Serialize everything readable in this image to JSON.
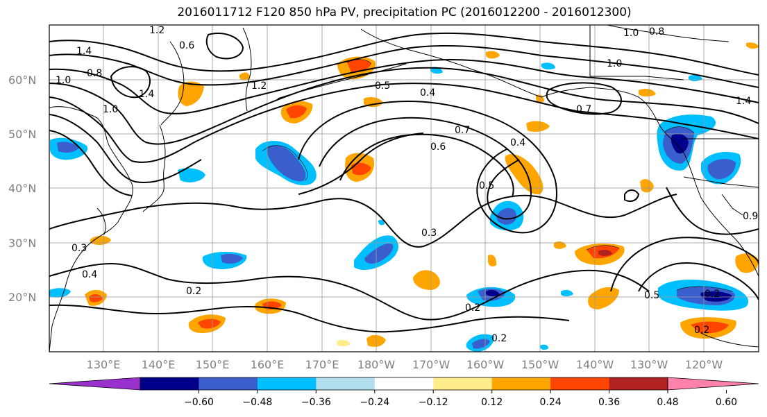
{
  "title": "2016011712 F120 850 hPa PV, precipitation PC (2016012200 - 2016012300)",
  "map": {
    "lat_labels": [
      "60°N",
      "50°N",
      "40°N",
      "30°N",
      "20°N"
    ],
    "lon_labels": [
      "130°E",
      "140°E",
      "150°E",
      "160°E",
      "170°E",
      "180°W",
      "170°W",
      "160°W",
      "150°W",
      "140°W",
      "130°W",
      "120°W"
    ],
    "contour_labels": [
      "1.4",
      "1.0",
      "0.8",
      "1.2",
      "1.4",
      "1.0",
      "0.6",
      "1.2",
      "0.5",
      "0.4",
      "1.0",
      "0.8",
      "1.0",
      "0.7",
      "0.7",
      "0.6",
      "0.4",
      "0.5",
      "0.3",
      "0.3",
      "0.4",
      "0.2",
      "0.2",
      "0.2",
      "0.2",
      "0.5",
      "0.2",
      "0.9",
      "1.4"
    ]
  },
  "colorbar": {
    "ticks": [
      "−0.60",
      "−0.48",
      "−0.36",
      "−0.24",
      "−0.12",
      "0.12",
      "0.24",
      "0.36",
      "0.48",
      "0.60"
    ],
    "colors": [
      "#9932cc",
      "#00008b",
      "#3a5fcd",
      "#00bfff",
      "#b2dfee",
      "#ffffff",
      "#ffec8b",
      "#ffa500",
      "#ff4500",
      "#b22222",
      "#ff82ab"
    ]
  }
}
